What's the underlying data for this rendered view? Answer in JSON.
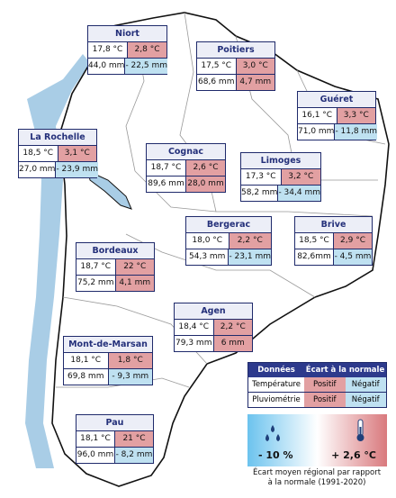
{
  "cities": [
    {
      "name": "Niort",
      "temp": "17,8 °C",
      "temp_dev": "2,8 °C",
      "rain": "44,0 mm",
      "rain_dev": "- 22,5 mm"
    },
    {
      "name": "Poitiers",
      "temp": "17,5 °C",
      "temp_dev": "3,0 °C",
      "rain": "68,6 mm",
      "rain_dev": "4,7 mm"
    },
    {
      "name": "Guéret",
      "temp": "16,1 °C",
      "temp_dev": "3,3 °C",
      "rain": "71,0 mm",
      "rain_dev": "- 11,8 mm"
    },
    {
      "name": "La Rochelle",
      "temp": "18,5 °C",
      "temp_dev": "3,1 °C",
      "rain": "27,0 mm",
      "rain_dev": "- 23,9 mm"
    },
    {
      "name": "Cognac",
      "temp": "18,7 °C",
      "temp_dev": "2,6 °C",
      "rain": "89,6 mm",
      "rain_dev": "28,0 mm"
    },
    {
      "name": "Limoges",
      "temp": "17,3 °C",
      "temp_dev": "3,2 °C",
      "rain": "58,2 mm",
      "rain_dev": "- 34,4 mm"
    },
    {
      "name": "Bergerac",
      "temp": "18,0 °C",
      "temp_dev": "2,2 °C",
      "rain": "54,3 mm",
      "rain_dev": "- 23,1 mm"
    },
    {
      "name": "Brive",
      "temp": "18,5 °C",
      "temp_dev": "2,9 °C",
      "rain": "82,6mm",
      "rain_dev": "- 4,5 mm"
    },
    {
      "name": "Bordeaux",
      "temp": "18,7 °C",
      "temp_dev": "22 °C",
      "rain": "75,2 mm",
      "rain_dev": "4,1 mm"
    },
    {
      "name": "Agen",
      "temp": "18,4 °C",
      "temp_dev": "2,2 °C",
      "rain": "79,3 mm",
      "rain_dev": "6 mm"
    },
    {
      "name": "Mont-de-Marsan",
      "temp": "18,1 °C",
      "temp_dev": "1,8 °C",
      "rain": "69,8 mm",
      "rain_dev": "- 9,3 mm"
    },
    {
      "name": "Pau",
      "temp": "18,1 °C",
      "temp_dev": "21 °C",
      "rain": "96,0 mm",
      "rain_dev": "- 8,2 mm"
    }
  ],
  "legend": {
    "headers": [
      "Données",
      "Écart à la normale"
    ],
    "rows": [
      {
        "label": "Température",
        "positive": "Positif",
        "negative": "Négatif"
      },
      {
        "label": "Pluviométrie",
        "positive": "Positif",
        "negative": "Négatif"
      }
    ],
    "positive_color": "#e2a0a2",
    "negative_color": "#bfe1f1"
  },
  "scale": {
    "left": "- 10 %",
    "right": "+ 2,6 °C",
    "caption": [
      "Écart moyen régional par rapport",
      "à la normale (1991-2020)"
    ]
  }
}
